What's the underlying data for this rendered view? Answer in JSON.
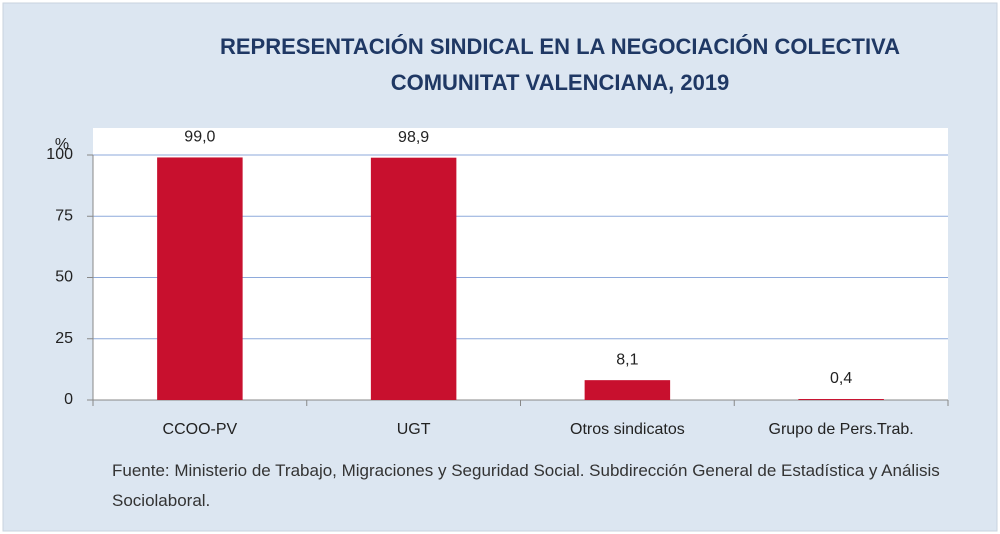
{
  "chart_data": {
    "type": "bar",
    "title": "REPRESENTACIÓN SINDICAL EN LA NEGOCIACIÓN COLECTIVA",
    "subtitle": "COMUNITAT VALENCIANA, 2019",
    "y_label": "%",
    "categories": [
      "CCOO-PV",
      "UGT",
      "Otros sindicatos",
      "Grupo de Pers.Trab."
    ],
    "values": [
      99.0,
      98.9,
      8.1,
      0.4
    ],
    "value_labels": [
      "99,0",
      "98,9",
      "8,1",
      "0,4"
    ],
    "color": "#c8102e",
    "ylim": [
      0,
      100
    ],
    "yticks": [
      0,
      25,
      50,
      75,
      100
    ],
    "grid": true,
    "source": "Fuente: Ministerio de Trabajo, Migraciones y Seguridad Social. Subdirección General de Estadística y Análisis Sociolaboral."
  }
}
